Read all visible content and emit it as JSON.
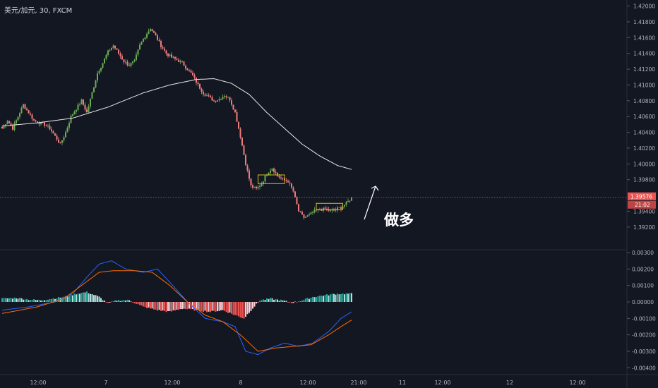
{
  "chart_title": "美元/加元, 30, FXCM",
  "annotation": "做多",
  "price_label": "1.39576",
  "countdown_label": "21:02",
  "colors": {
    "background": "#131722",
    "up_candle": "#6aad52",
    "down_candle": "#ef7c7c",
    "ma_line": "#e8e8e8",
    "current_price_line": "#ef5350",
    "macd_line": "#2962ff",
    "signal_line": "#ff6d00",
    "hist_pos_strong": "#26a69a",
    "hist_pos_weak": "#b2dfdb",
    "hist_neg_strong": "#ef5350",
    "hist_neg_weak": "#ffcdd2",
    "box": "#d4c21a",
    "text": "#b2b5be"
  },
  "chart_data": [
    {
      "type": "candlestick",
      "title": "美元/加元, 30, FXCM",
      "ylim": [
        1.391,
        1.4205
      ],
      "yticks": [
        "1.42000",
        "1.41800",
        "1.41600",
        "1.41400",
        "1.41200",
        "1.41000",
        "1.40800",
        "1.40600",
        "1.40400",
        "1.40200",
        "1.40000",
        "1.39800",
        "1.39400",
        "1.39200"
      ],
      "xticks": [
        "12:00",
        "7",
        "12:00",
        "8",
        "12:00",
        "21:00",
        "11",
        "12:00",
        "12",
        "12:00"
      ],
      "current_price": 1.39576,
      "close_path": [
        [
          0,
          1.4045
        ],
        [
          3,
          1.4055
        ],
        [
          6,
          1.4045
        ],
        [
          9,
          1.406
        ],
        [
          12,
          1.4075
        ],
        [
          15,
          1.4065
        ],
        [
          18,
          1.4055
        ],
        [
          21,
          1.4052
        ],
        [
          24,
          1.405
        ],
        [
          27,
          1.4045
        ],
        [
          30,
          1.4035
        ],
        [
          33,
          1.4025
        ],
        [
          36,
          1.404
        ],
        [
          39,
          1.406
        ],
        [
          42,
          1.407
        ],
        [
          45,
          1.408
        ],
        [
          48,
          1.4065
        ],
        [
          51,
          1.409
        ],
        [
          54,
          1.4115
        ],
        [
          57,
          1.4128
        ],
        [
          60,
          1.4142
        ],
        [
          63,
          1.415
        ],
        [
          66,
          1.414
        ],
        [
          69,
          1.413
        ],
        [
          72,
          1.4125
        ],
        [
          75,
          1.413
        ],
        [
          78,
          1.415
        ],
        [
          81,
          1.4162
        ],
        [
          84,
          1.4172
        ],
        [
          87,
          1.4162
        ],
        [
          90,
          1.415
        ],
        [
          93,
          1.414
        ],
        [
          96,
          1.4135
        ],
        [
          99,
          1.4132
        ],
        [
          102,
          1.4128
        ],
        [
          105,
          1.412
        ],
        [
          108,
          1.4112
        ],
        [
          111,
          1.41
        ],
        [
          114,
          1.409
        ],
        [
          117,
          1.4085
        ],
        [
          120,
          1.408
        ],
        [
          123,
          1.4082
        ],
        [
          126,
          1.4087
        ],
        [
          129,
          1.4082
        ],
        [
          132,
          1.4065
        ],
        [
          135,
          1.4035
        ],
        [
          138,
          1.4
        ],
        [
          141,
          1.3972
        ],
        [
          144,
          1.3968
        ],
        [
          147,
          1.3975
        ],
        [
          150,
          1.3988
        ],
        [
          153,
          1.3995
        ],
        [
          156,
          1.3985
        ],
        [
          159,
          1.398
        ],
        [
          162,
          1.3978
        ],
        [
          165,
          1.3965
        ],
        [
          168,
          1.394
        ],
        [
          171,
          1.3932
        ],
        [
          174,
          1.3935
        ],
        [
          177,
          1.394
        ],
        [
          180,
          1.3942
        ],
        [
          183,
          1.3943
        ],
        [
          186,
          1.394
        ],
        [
          189,
          1.3942
        ],
        [
          192,
          1.3945
        ],
        [
          195,
          1.395
        ],
        [
          198,
          1.3957
        ]
      ],
      "moving_average": [
        [
          0,
          1.4048
        ],
        [
          20,
          1.4052
        ],
        [
          40,
          1.4058
        ],
        [
          60,
          1.4072
        ],
        [
          80,
          1.409
        ],
        [
          95,
          1.41
        ],
        [
          110,
          1.4107
        ],
        [
          120,
          1.4108
        ],
        [
          130,
          1.4102
        ],
        [
          140,
          1.4088
        ],
        [
          150,
          1.4065
        ],
        [
          160,
          1.4045
        ],
        [
          170,
          1.4025
        ],
        [
          180,
          1.401
        ],
        [
          190,
          1.3998
        ],
        [
          198,
          1.3993
        ]
      ],
      "consolidation_boxes": [
        {
          "from": 145,
          "to": 160,
          "low": 1.3975,
          "high": 1.3986
        },
        {
          "from": 178,
          "to": 193,
          "low": 1.3942,
          "high": 1.395
        }
      ]
    },
    {
      "type": "macd",
      "ylim": [
        -0.0042,
        0.003
      ],
      "yticks": [
        "0.00300",
        "0.00200",
        "0.00100",
        "0.00000",
        "-0.00100",
        "-0.00200",
        "-0.00300",
        "-0.00400"
      ],
      "macd": [
        [
          0,
          -0.0005
        ],
        [
          15,
          -0.0003
        ],
        [
          30,
          0.0
        ],
        [
          40,
          0.0005
        ],
        [
          48,
          0.0015
        ],
        [
          55,
          0.0023
        ],
        [
          62,
          0.0025
        ],
        [
          70,
          0.002
        ],
        [
          80,
          0.0018
        ],
        [
          88,
          0.002
        ],
        [
          95,
          0.0012
        ],
        [
          105,
          0.0
        ],
        [
          115,
          -0.001
        ],
        [
          125,
          -0.0012
        ],
        [
          132,
          -0.0015
        ],
        [
          138,
          -0.003
        ],
        [
          145,
          -0.0032
        ],
        [
          152,
          -0.0028
        ],
        [
          160,
          -0.0025
        ],
        [
          168,
          -0.0027
        ],
        [
          176,
          -0.0025
        ],
        [
          185,
          -0.0018
        ],
        [
          192,
          -0.001
        ],
        [
          198,
          -0.0006
        ]
      ],
      "signal": [
        [
          0,
          -0.0007
        ],
        [
          20,
          -0.0003
        ],
        [
          35,
          0.0002
        ],
        [
          45,
          0.001
        ],
        [
          55,
          0.0018
        ],
        [
          63,
          0.0019
        ],
        [
          75,
          0.0019
        ],
        [
          85,
          0.0018
        ],
        [
          95,
          0.001
        ],
        [
          105,
          0.0
        ],
        [
          115,
          -0.0008
        ],
        [
          125,
          -0.0012
        ],
        [
          135,
          -0.002
        ],
        [
          145,
          -0.003
        ],
        [
          155,
          -0.0028
        ],
        [
          165,
          -0.0027
        ],
        [
          175,
          -0.0026
        ],
        [
          185,
          -0.002
        ],
        [
          192,
          -0.0015
        ],
        [
          198,
          -0.0011
        ]
      ],
      "histogram_profile": [
        [
          0,
          0.0002
        ],
        [
          8,
          0.00025
        ],
        [
          15,
          0.00015
        ],
        [
          22,
          0.0001
        ],
        [
          28,
          0.0002
        ],
        [
          35,
          0.0003
        ],
        [
          42,
          0.0005
        ],
        [
          48,
          0.0006
        ],
        [
          55,
          0.0003
        ],
        [
          60,
          -0.0001
        ],
        [
          65,
          0.0001
        ],
        [
          72,
          0.0001
        ],
        [
          80,
          -0.0003
        ],
        [
          88,
          -0.0005
        ],
        [
          95,
          -0.0006
        ],
        [
          102,
          -0.0004
        ],
        [
          110,
          -0.0005
        ],
        [
          118,
          -0.0006
        ],
        [
          125,
          -0.0005
        ],
        [
          132,
          -0.0008
        ],
        [
          137,
          -0.001
        ],
        [
          141,
          -0.0005
        ],
        [
          146,
          0.0001
        ],
        [
          152,
          0.0002
        ],
        [
          158,
          0.0001
        ],
        [
          164,
          -5e-05
        ],
        [
          170,
          0.0001
        ],
        [
          176,
          0.0003
        ],
        [
          182,
          0.0004
        ],
        [
          190,
          0.0005
        ],
        [
          198,
          0.0005
        ]
      ]
    }
  ]
}
